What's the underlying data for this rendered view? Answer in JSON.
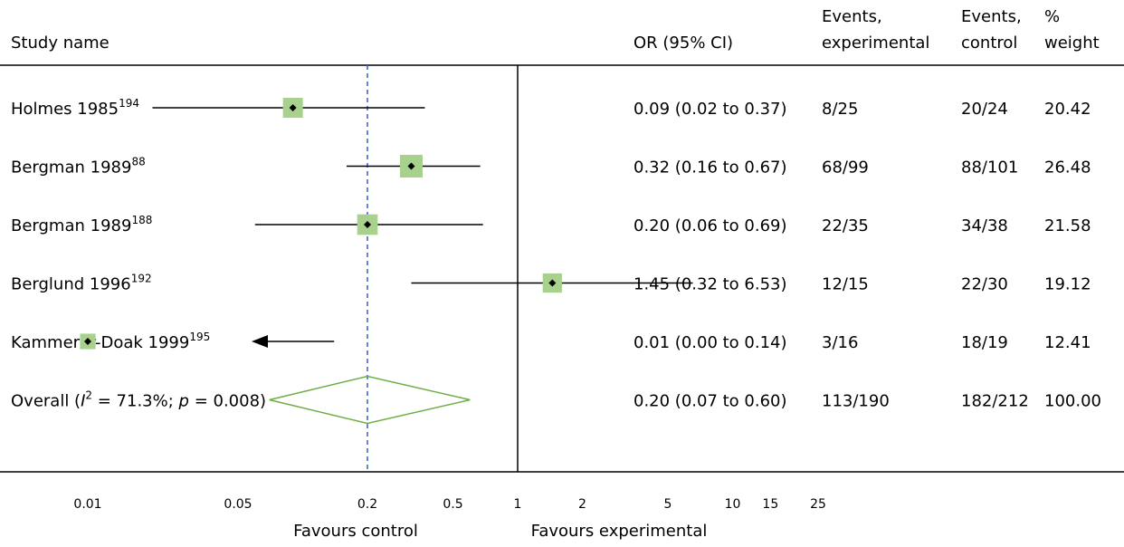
{
  "chart_data": {
    "type": "forest",
    "scale": "log",
    "headers": {
      "study": "Study name",
      "or": "OR (95% CI)",
      "events_exp": [
        "Events,",
        "experimental"
      ],
      "events_ctl": [
        "Events,",
        "control"
      ],
      "weight": [
        "%",
        "weight"
      ]
    },
    "studies": [
      {
        "name": "Holmes 1985",
        "ref": "194",
        "or": 0.09,
        "lo": 0.02,
        "hi": 0.37,
        "or_text": "0.09 (0.02 to 0.37)",
        "events_exp": "8/25",
        "events_ctl": "20/24",
        "weight": 20.42,
        "weight_text": "20.42",
        "arrow_left": false
      },
      {
        "name": "Bergman 1989",
        "ref": "88",
        "or": 0.32,
        "lo": 0.16,
        "hi": 0.67,
        "or_text": "0.32 (0.16 to 0.67)",
        "events_exp": "68/99",
        "events_ctl": "88/101",
        "weight": 26.48,
        "weight_text": "26.48",
        "arrow_left": false
      },
      {
        "name": "Bergman 1989",
        "ref": "188",
        "or": 0.2,
        "lo": 0.06,
        "hi": 0.69,
        "or_text": "0.20 (0.06 to 0.69)",
        "events_exp": "22/35",
        "events_ctl": "34/38",
        "weight": 21.58,
        "weight_text": "21.58",
        "arrow_left": false
      },
      {
        "name": "Berglund 1996",
        "ref": "192",
        "or": 1.45,
        "lo": 0.32,
        "hi": 6.53,
        "or_text": "1.45 (0.32 to 6.53)",
        "events_exp": "12/15",
        "events_ctl": "22/30",
        "weight": 19.12,
        "weight_text": "19.12",
        "arrow_left": false
      },
      {
        "name": "Kammerer-Doak 1999",
        "ref": "195",
        "or": 0.01,
        "lo": 0.0,
        "hi": 0.14,
        "or_text": "0.01 (0.00 to 0.14)",
        "events_exp": "3/16",
        "events_ctl": "18/19",
        "weight": 12.41,
        "weight_text": "12.41",
        "arrow_left": true
      }
    ],
    "overall": {
      "label_prefix": "Overall (",
      "i2_symbol": "I",
      "i2_sup": "2",
      "i2_text": " = 71.3%; ",
      "p_symbol": "p",
      "p_text": " = 0.008)",
      "or": 0.2,
      "lo": 0.07,
      "hi": 0.6,
      "or_text": "0.20 (0.07 to 0.60)",
      "events_exp": "113/190",
      "events_ctl": "182/212",
      "weight_text": "100.00"
    },
    "x_ticks": [
      {
        "value": 0.01,
        "label": "0.01"
      },
      {
        "value": 0.05,
        "label": "0.05"
      },
      {
        "value": 0.2,
        "label": "0.2"
      },
      {
        "value": 0.5,
        "label": "0.5"
      },
      {
        "value": 1,
        "label": "1"
      },
      {
        "value": 2,
        "label": "2"
      },
      {
        "value": 5,
        "label": "5"
      },
      {
        "value": 10,
        "label": "10"
      },
      {
        "value": 15,
        "label": "15"
      },
      {
        "value": 25,
        "label": "25"
      }
    ],
    "null_line": 1,
    "pooled_line": 0.2,
    "favours_left": "Favours control",
    "favours_right": "Favours experimental",
    "colors": {
      "box": "#a9d18e",
      "diamond": "#70ad47",
      "pooled_line": "#2f5fcf",
      "line": "#000000"
    }
  }
}
